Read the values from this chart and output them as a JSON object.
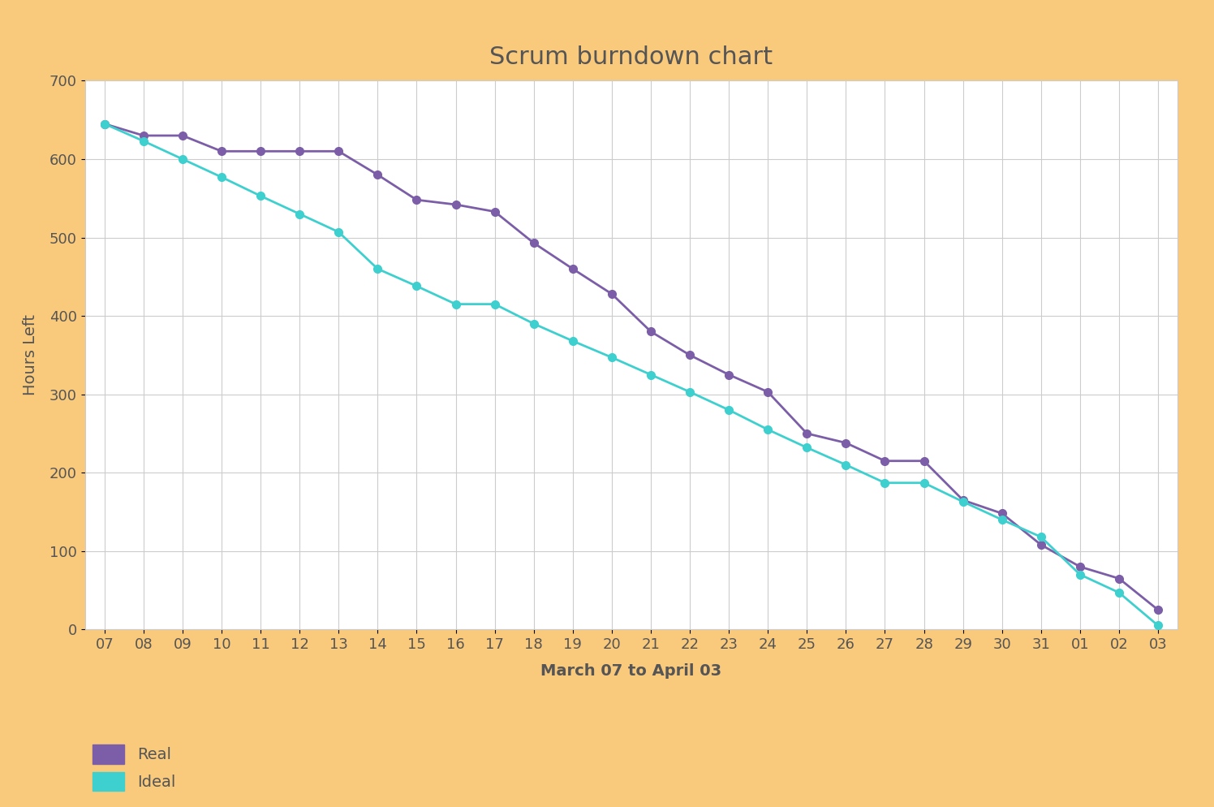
{
  "title": "Scrum burndown chart",
  "xlabel": "March 07 to April 03",
  "ylabel": "Hours Left",
  "background_color": "#F9C97C",
  "plot_background_color": "#FFFFFF",
  "x_labels": [
    "07",
    "08",
    "09",
    "10",
    "11",
    "12",
    "13",
    "14",
    "15",
    "16",
    "17",
    "18",
    "19",
    "20",
    "21",
    "22",
    "23",
    "24",
    "25",
    "26",
    "27",
    "28",
    "29",
    "30",
    "31",
    "01",
    "02",
    "03"
  ],
  "real_values": [
    645,
    630,
    630,
    610,
    610,
    610,
    610,
    580,
    548,
    542,
    533,
    493,
    460,
    428,
    380,
    350,
    325,
    303,
    250,
    238,
    215,
    215,
    165,
    148,
    108,
    80,
    65,
    25
  ],
  "ideal_values": [
    645,
    623,
    600,
    577,
    553,
    530,
    507,
    460,
    438,
    415,
    415,
    390,
    368,
    347,
    325,
    303,
    280,
    255,
    232,
    210,
    187,
    187,
    163,
    140,
    118,
    70,
    47,
    5
  ],
  "real_color": "#7B5EA7",
  "ideal_color": "#3ECFCF",
  "ylim": [
    0,
    700
  ],
  "yticks": [
    0,
    100,
    200,
    300,
    400,
    500,
    600,
    700
  ],
  "title_fontsize": 22,
  "axis_label_fontsize": 14,
  "tick_fontsize": 13,
  "legend_fontsize": 14,
  "line_width": 2.0,
  "marker_size": 7
}
